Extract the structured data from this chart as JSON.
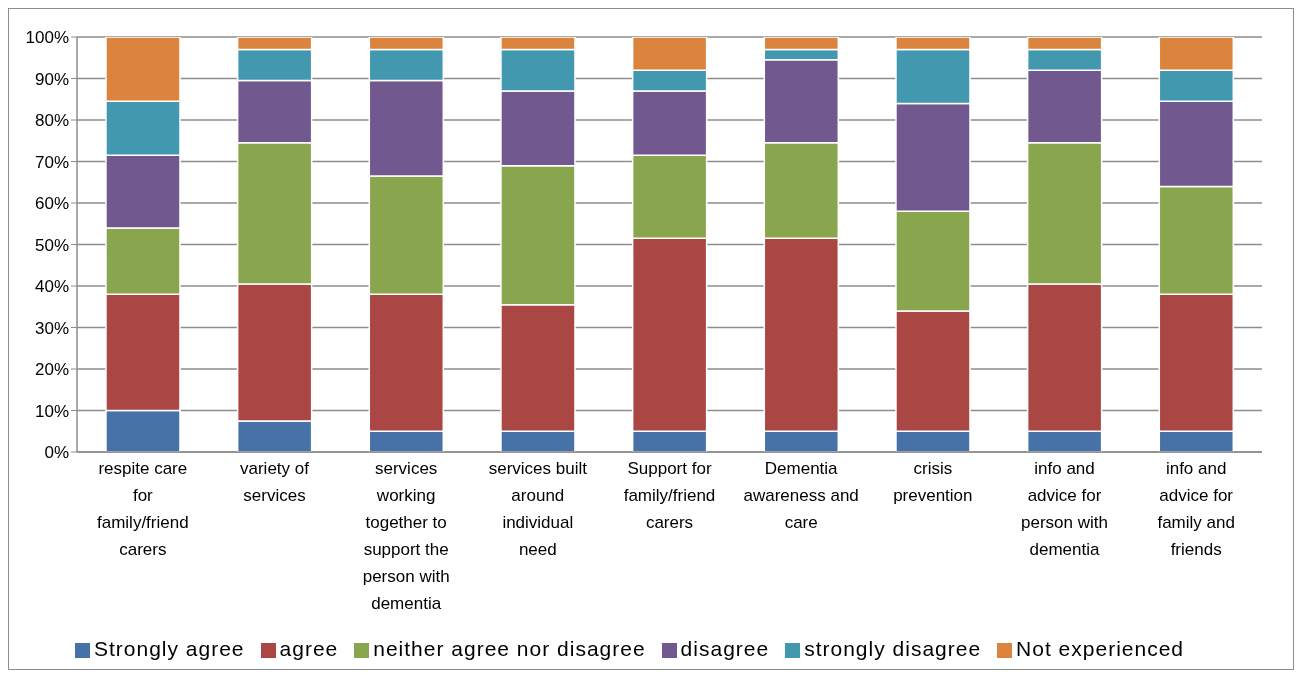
{
  "chart_data": {
    "type": "bar",
    "stacked": true,
    "categories": [
      "respite care for family/friend carers",
      "variety of services",
      "services working together to support the person with dementia",
      "services built around individual need",
      "Support for family/friend carers",
      "Dementia awareness and care",
      "crisis prevention",
      "info and advice for person with dementia",
      "info and advice for family and friends"
    ],
    "series": [
      {
        "name": "Strongly agree",
        "color": "#4672a8",
        "values": [
          10,
          7.5,
          5,
          5,
          5,
          5,
          5,
          5,
          5
        ]
      },
      {
        "name": "agree",
        "color": "#aa4643",
        "values": [
          28,
          33,
          33,
          30.5,
          46.5,
          46.5,
          29,
          35.5,
          33
        ]
      },
      {
        "name": "neither agree nor disagree",
        "color": "#89a54e",
        "values": [
          16,
          34,
          28.5,
          33.5,
          20,
          23,
          24,
          34,
          26
        ]
      },
      {
        "name": "disagree",
        "color": "#71588f",
        "values": [
          17.5,
          15,
          23,
          18,
          15.5,
          20,
          26,
          17.5,
          20.5
        ]
      },
      {
        "name": "strongly disagree",
        "color": "#4198af",
        "values": [
          13,
          7.5,
          7.5,
          10,
          5,
          2.5,
          13,
          5,
          7.5
        ]
      },
      {
        "name": "Not experienced",
        "color": "#db843d",
        "values": [
          15.5,
          3,
          3,
          3,
          8,
          3,
          3,
          3,
          8
        ]
      }
    ],
    "ylim": [
      0,
      100
    ],
    "yticks": [
      {
        "value": 0,
        "label": "0%"
      },
      {
        "value": 10,
        "label": "10%"
      },
      {
        "value": 20,
        "label": "20%"
      },
      {
        "value": 30,
        "label": "30%"
      },
      {
        "value": 40,
        "label": "40%"
      },
      {
        "value": 50,
        "label": "50%"
      },
      {
        "value": 60,
        "label": "60%"
      },
      {
        "value": 70,
        "label": "70%"
      },
      {
        "value": 80,
        "label": "80%"
      },
      {
        "value": 90,
        "label": "90%"
      },
      {
        "value": 100,
        "label": "100%"
      }
    ],
    "grid": "y",
    "legend": "bottom"
  }
}
